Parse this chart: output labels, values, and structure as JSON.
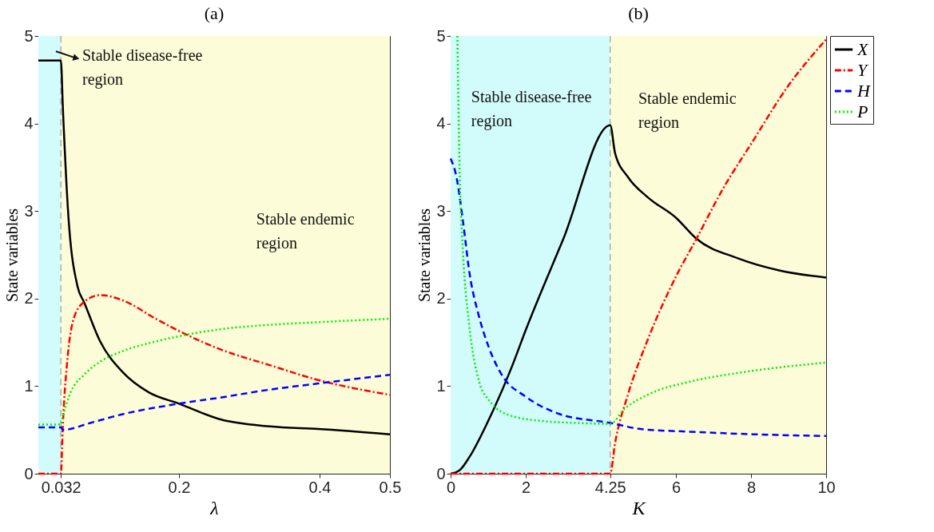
{
  "chart_data": [
    {
      "type": "line",
      "title": "(a)",
      "xlabel": "λ",
      "ylabel": "State variables",
      "xlim": [
        0,
        0.5
      ],
      "ylim": [
        0,
        5
      ],
      "xticks": [
        0.032,
        0.2,
        0.4,
        0.5
      ],
      "yticks": [
        0,
        1,
        2,
        3,
        4,
        5
      ],
      "grid": false,
      "legend": false,
      "marker": "none",
      "series": [
        {
          "color": "#000000",
          "line_style": "solid",
          "x": [
            0,
            0.032,
            0.035,
            0.042,
            0.056,
            0.065,
            0.088,
            0.12,
            0.157,
            0.2,
            0.259,
            0.329,
            0.398,
            0.5
          ],
          "values": [
            4.72,
            4.72,
            4.15,
            3.03,
            2.13,
            1.96,
            1.51,
            1.16,
            0.93,
            0.8,
            0.62,
            0.54,
            0.51,
            0.45
          ]
        },
        {
          "color": "#ff0000",
          "line_style": "dashdot",
          "x": [
            0,
            0.032,
            0.035,
            0.042,
            0.051,
            0.065,
            0.088,
            0.12,
            0.167,
            0.2,
            0.259,
            0.329,
            0.398,
            0.5
          ],
          "values": [
            0,
            0,
            0.58,
            1.36,
            1.79,
            1.96,
            2.04,
            1.98,
            1.77,
            1.63,
            1.42,
            1.24,
            1.07,
            0.9
          ]
        },
        {
          "color": "#0000ff",
          "line_style": "dashed",
          "x": [
            0,
            0.032,
            0.035,
            0.074,
            0.12,
            0.2,
            0.259,
            0.329,
            0.398,
            0.5
          ],
          "values": [
            0.53,
            0.53,
            0.5,
            0.58,
            0.68,
            0.8,
            0.87,
            0.96,
            1.03,
            1.13
          ]
        },
        {
          "color": "#00ee00",
          "line_style": "dotted",
          "x": [
            0,
            0.032,
            0.035,
            0.046,
            0.065,
            0.088,
            0.12,
            0.167,
            0.2,
            0.259,
            0.329,
            0.398,
            0.5
          ],
          "values": [
            0.56,
            0.56,
            0.66,
            0.93,
            1.13,
            1.28,
            1.4,
            1.51,
            1.57,
            1.65,
            1.7,
            1.73,
            1.77
          ]
        }
      ],
      "bands": [
        {
          "axis": "x",
          "from": 0,
          "to": 0.032,
          "color": "#d2fbfc"
        },
        {
          "axis": "x",
          "from": 0.032,
          "to": 0.5,
          "color": "#fdfcd8"
        }
      ],
      "ref_lines": [
        {
          "axis": "x",
          "value": 0.032,
          "color": "#9a9a9a",
          "line_style": "dashed"
        }
      ],
      "annotations": [
        "Stable disease-free region",
        "Stable endemic region"
      ]
    },
    {
      "type": "line",
      "title": "(b)",
      "xlabel": "K",
      "ylabel": "State variables",
      "xlim": [
        0,
        10
      ],
      "ylim": [
        0,
        5
      ],
      "xticks": [
        0,
        2,
        4.25,
        6,
        8,
        10
      ],
      "yticks": [
        0,
        1,
        2,
        3,
        4,
        5
      ],
      "grid": false,
      "legend": "right",
      "marker": "none",
      "series": [
        {
          "name": "X",
          "color": "#000000",
          "line_style": "solid",
          "x": [
            0,
            0.24,
            0.5,
            1.02,
            1.62,
            2,
            3,
            4.25,
            4.38,
            4.72,
            5.24,
            6.01,
            6.53,
            7.65,
            8.77,
            10
          ],
          "values": [
            0,
            0.04,
            0.19,
            0.62,
            1.21,
            1.64,
            2.68,
            3.98,
            3.66,
            3.39,
            3.16,
            2.92,
            2.69,
            2.46,
            2.32,
            2.24
          ]
        },
        {
          "name": "Y",
          "color": "#ff0000",
          "line_style": "dashdot",
          "x": [
            0,
            4.25,
            4.38,
            4.72,
            5.24,
            6.01,
            6.53,
            7.22,
            8.08,
            8.94,
            10
          ],
          "values": [
            0,
            0,
            0.35,
            0.9,
            1.52,
            2.26,
            2.67,
            3.23,
            3.82,
            4.4,
            4.96
          ]
        },
        {
          "name": "H",
          "color": "#0000ff",
          "line_style": "dashed",
          "x": [
            0,
            0.155,
            0.33,
            0.5,
            0.76,
            1.02,
            1.36,
            2,
            2.91,
            4.25,
            5.06,
            6.36,
            8.08,
            10
          ],
          "values": [
            3.6,
            3.39,
            2.88,
            2.3,
            1.79,
            1.44,
            1.13,
            0.88,
            0.68,
            0.58,
            0.51,
            0.48,
            0.45,
            0.43
          ]
        },
        {
          "name": "P",
          "color": "#00ee00",
          "line_style": "dotted",
          "x": [
            0.18,
            0.24,
            0.33,
            0.5,
            0.76,
            1.02,
            1.62,
            2.48,
            3.34,
            4.25,
            4.63,
            5.24,
            6.36,
            7.65,
            10
          ],
          "values": [
            5,
            3.47,
            2.53,
            1.68,
            1.05,
            0.84,
            0.66,
            0.6,
            0.58,
            0.57,
            0.74,
            0.9,
            1.05,
            1.15,
            1.27
          ]
        }
      ],
      "bands": [
        {
          "axis": "x",
          "from": 0,
          "to": 4.25,
          "color": "#d2fbfc"
        },
        {
          "axis": "x",
          "from": 4.25,
          "to": 10,
          "color": "#fdfcd8"
        }
      ],
      "ref_lines": [
        {
          "axis": "x",
          "value": 4.25,
          "color": "#9a9a9a",
          "line_style": "dashed"
        }
      ],
      "annotations": [
        "Stable disease-free region",
        "Stable endemic region"
      ]
    }
  ]
}
